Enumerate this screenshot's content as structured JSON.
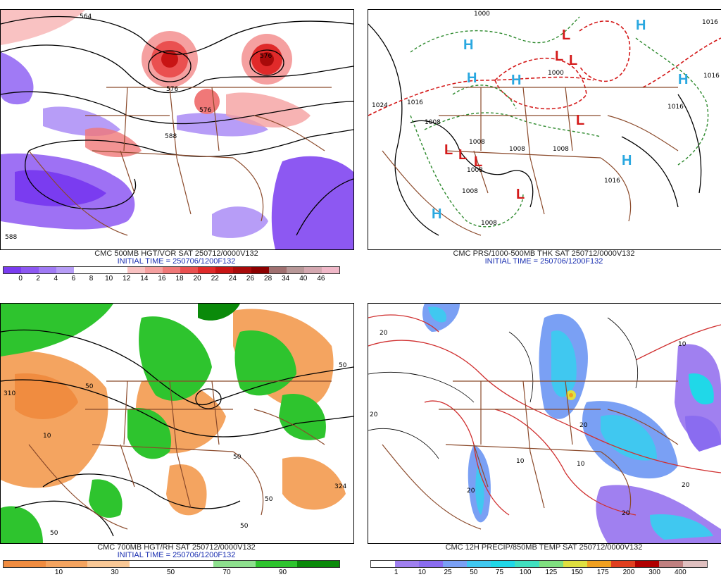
{
  "panels": [
    {
      "id": "p1",
      "title": "CMC 500MB HGT/VOR SAT 250712/0000V132",
      "subtitle": "INITIAL TIME = 250706/1200F132",
      "colorbar_colors": [
        "#7a3cf0",
        "#8d58f2",
        "#a07af5",
        "#b79df7",
        "#ffffff",
        "#ffffff",
        "#ffffff",
        "#f9c2c2",
        "#f5a0a0",
        "#f07878",
        "#ea5050",
        "#e02a2a",
        "#c81414",
        "#a80a0a",
        "#8c0000",
        "#a07070",
        "#b89898",
        "#d4a8b0",
        "#f0b8c8"
      ],
      "colorbar_ticks": [
        "0",
        "2",
        "4",
        "6",
        "8",
        "10",
        "12",
        "14",
        "16",
        "18",
        "20",
        "22",
        "24",
        "26",
        "28",
        "34",
        "40",
        "46"
      ],
      "contour_labels": [
        "564",
        "576",
        "576",
        "576",
        "588",
        "588"
      ]
    },
    {
      "id": "p2",
      "title": "CMC PRS/1000-500MB THK SAT 250712/0000V132",
      "subtitle": "INITIAL TIME = 250706/1200F132",
      "highs": [
        "H",
        "H",
        "H",
        "H",
        "H",
        "H",
        "H"
      ],
      "lows": [
        "L",
        "L",
        "L",
        "L",
        "L",
        "L",
        "L",
        "L"
      ],
      "isobar_labels": [
        "1000",
        "1024",
        "1016",
        "1008",
        "1008",
        "1008",
        "1008",
        "1008",
        "1008",
        "1016",
        "1016",
        "1016",
        "1016",
        "1008",
        "1000"
      ]
    },
    {
      "id": "p3",
      "title": "CMC 700MB HGT/RH SAT 250712/0000V132",
      "subtitle": "INITIAL TIME = 250706/1200F132",
      "colorbar_colors": [
        "#f08c40",
        "#f4a460",
        "#f9c896",
        "#ffffff",
        "#ffffff",
        "#8ee08e",
        "#2ec42e",
        "#0a8a0a"
      ],
      "colorbar_ticks": [
        "10",
        "30",
        "50",
        "70",
        "90"
      ],
      "contour_labels": [
        "10",
        "50",
        "50",
        "50",
        "50",
        "50",
        "50",
        "324",
        "310"
      ]
    },
    {
      "id": "p4",
      "title": "CMC 12H PRECIP/850MB TEMP SAT 250712/0000V132",
      "colorbar_colors": [
        "#ffffff",
        "#a080f0",
        "#8a6cf0",
        "#7aa0f4",
        "#40c8f0",
        "#20d8e8",
        "#40e0c0",
        "#80e080",
        "#e0e040",
        "#f0a020",
        "#e04020",
        "#b00000",
        "#c08080",
        "#e0c0c0"
      ],
      "colorbar_ticks": [
        "1",
        "10",
        "25",
        "50",
        "75",
        "100",
        "125",
        "150",
        "175",
        "200",
        "300",
        "400"
      ],
      "contour_labels": [
        "20",
        "20",
        "20",
        "10",
        "10",
        "10",
        "20",
        "20",
        "20"
      ]
    }
  ]
}
